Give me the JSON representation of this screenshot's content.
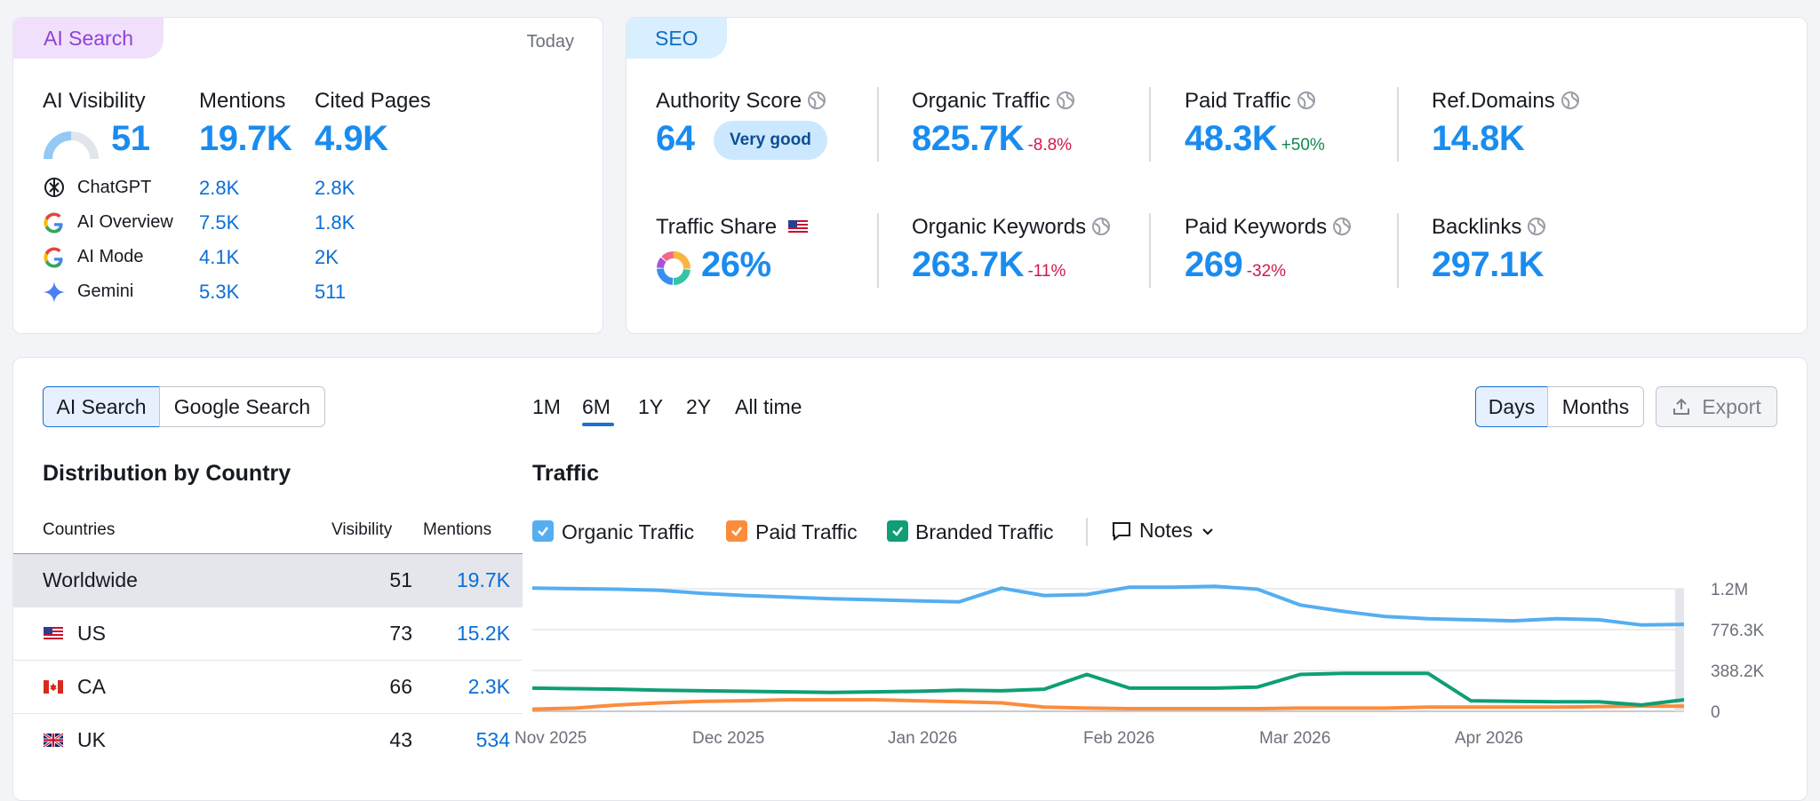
{
  "ai_search": {
    "tag": "AI Search",
    "date": "Today",
    "visibility": {
      "label": "AI Visibility",
      "value": "51"
    },
    "mentions": {
      "label": "Mentions",
      "value": "19.7K"
    },
    "cited": {
      "label": "Cited Pages",
      "value": "4.9K"
    },
    "rows": [
      {
        "name": "ChatGPT",
        "mentions": "2.8K",
        "cited": "2.8K",
        "icon": "chatgpt-icon"
      },
      {
        "name": "AI Overview",
        "mentions": "7.5K",
        "cited": "1.8K",
        "icon": "google-icon"
      },
      {
        "name": "AI Mode",
        "mentions": "4.1K",
        "cited": "2K",
        "icon": "google-icon"
      },
      {
        "name": "Gemini",
        "mentions": "5.3K",
        "cited": "511",
        "icon": "gemini-icon"
      }
    ]
  },
  "seo": {
    "tag": "SEO",
    "authority": {
      "label": "Authority Score",
      "value": "64",
      "badge": "Very good"
    },
    "organic_traffic": {
      "label": "Organic Traffic",
      "value": "825.7K",
      "delta": "-8.8%"
    },
    "paid_traffic": {
      "label": "Paid Traffic",
      "value": "48.3K",
      "delta": "+50%"
    },
    "ref_domains": {
      "label": "Ref.Domains",
      "value": "14.8K"
    },
    "traffic_share": {
      "label": "Traffic Share",
      "value": "26%"
    },
    "organic_keywords": {
      "label": "Organic Keywords",
      "value": "263.7K",
      "delta": "-11%"
    },
    "paid_keywords": {
      "label": "Paid Keywords",
      "value": "269",
      "delta": "-32%"
    },
    "backlinks": {
      "label": "Backlinks",
      "value": "297.1K"
    }
  },
  "bottom": {
    "toggle": {
      "ai": "AI Search",
      "google": "Google Search"
    },
    "periods": [
      "1M",
      "6M",
      "1Y",
      "2Y",
      "All time"
    ],
    "active_period": "6M",
    "granularity": {
      "days": "Days",
      "months": "Months"
    },
    "export": "Export",
    "distribution": {
      "title": "Distribution by Country",
      "headers": {
        "country": "Countries",
        "visibility": "Visibility",
        "mentions": "Mentions"
      },
      "rows": [
        {
          "country": "Worldwide",
          "visibility": "51",
          "mentions": "19.7K"
        },
        {
          "country": "US",
          "visibility": "73",
          "mentions": "15.2K"
        },
        {
          "country": "CA",
          "visibility": "66",
          "mentions": "2.3K"
        },
        {
          "country": "UK",
          "visibility": "43",
          "mentions": "534"
        }
      ]
    },
    "traffic": {
      "title": "Traffic",
      "legend": {
        "organic": "Organic Traffic",
        "paid": "Paid Traffic",
        "branded": "Branded Traffic",
        "notes": "Notes"
      }
    }
  },
  "colors": {
    "organic": "#55aef0",
    "paid": "#fb8c3c",
    "branded": "#0f9e76",
    "accent": "#1a8cf0"
  },
  "chart_data": {
    "type": "line",
    "x_ticks": [
      "Nov 2025",
      "Dec 2025",
      "Jan 2026",
      "Feb 2026",
      "Mar 2026",
      "Apr 2026"
    ],
    "y_ticks": [
      "1.2M",
      "776.3K",
      "388.2K",
      "0"
    ],
    "ylim": [
      0,
      1164500
    ],
    "series": [
      {
        "name": "Organic Traffic",
        "color": "#55aef0",
        "values": [
          1170000,
          1165000,
          1160000,
          1150000,
          1120000,
          1100000,
          1085000,
          1070000,
          1060000,
          1050000,
          1040000,
          1170000,
          1100000,
          1110000,
          1180000,
          1180000,
          1190000,
          1160000,
          1010000,
          950000,
          900000,
          880000,
          870000,
          860000,
          880000,
          870000,
          820000,
          825700
        ]
      },
      {
        "name": "Paid Traffic",
        "color": "#fb8c3c",
        "values": [
          20000,
          30000,
          60000,
          80000,
          95000,
          100000,
          110000,
          110000,
          110000,
          100000,
          90000,
          80000,
          40000,
          30000,
          25000,
          25000,
          25000,
          25000,
          30000,
          30000,
          30000,
          40000,
          40000,
          40000,
          40000,
          45000,
          50000,
          48300
        ]
      },
      {
        "name": "Branded Traffic",
        "color": "#0f9e76",
        "values": [
          220000,
          215000,
          210000,
          200000,
          195000,
          190000,
          185000,
          180000,
          185000,
          190000,
          200000,
          195000,
          210000,
          350000,
          220000,
          220000,
          220000,
          230000,
          350000,
          360000,
          360000,
          360000,
          100000,
          95000,
          90000,
          90000,
          60000,
          110000
        ]
      }
    ]
  }
}
